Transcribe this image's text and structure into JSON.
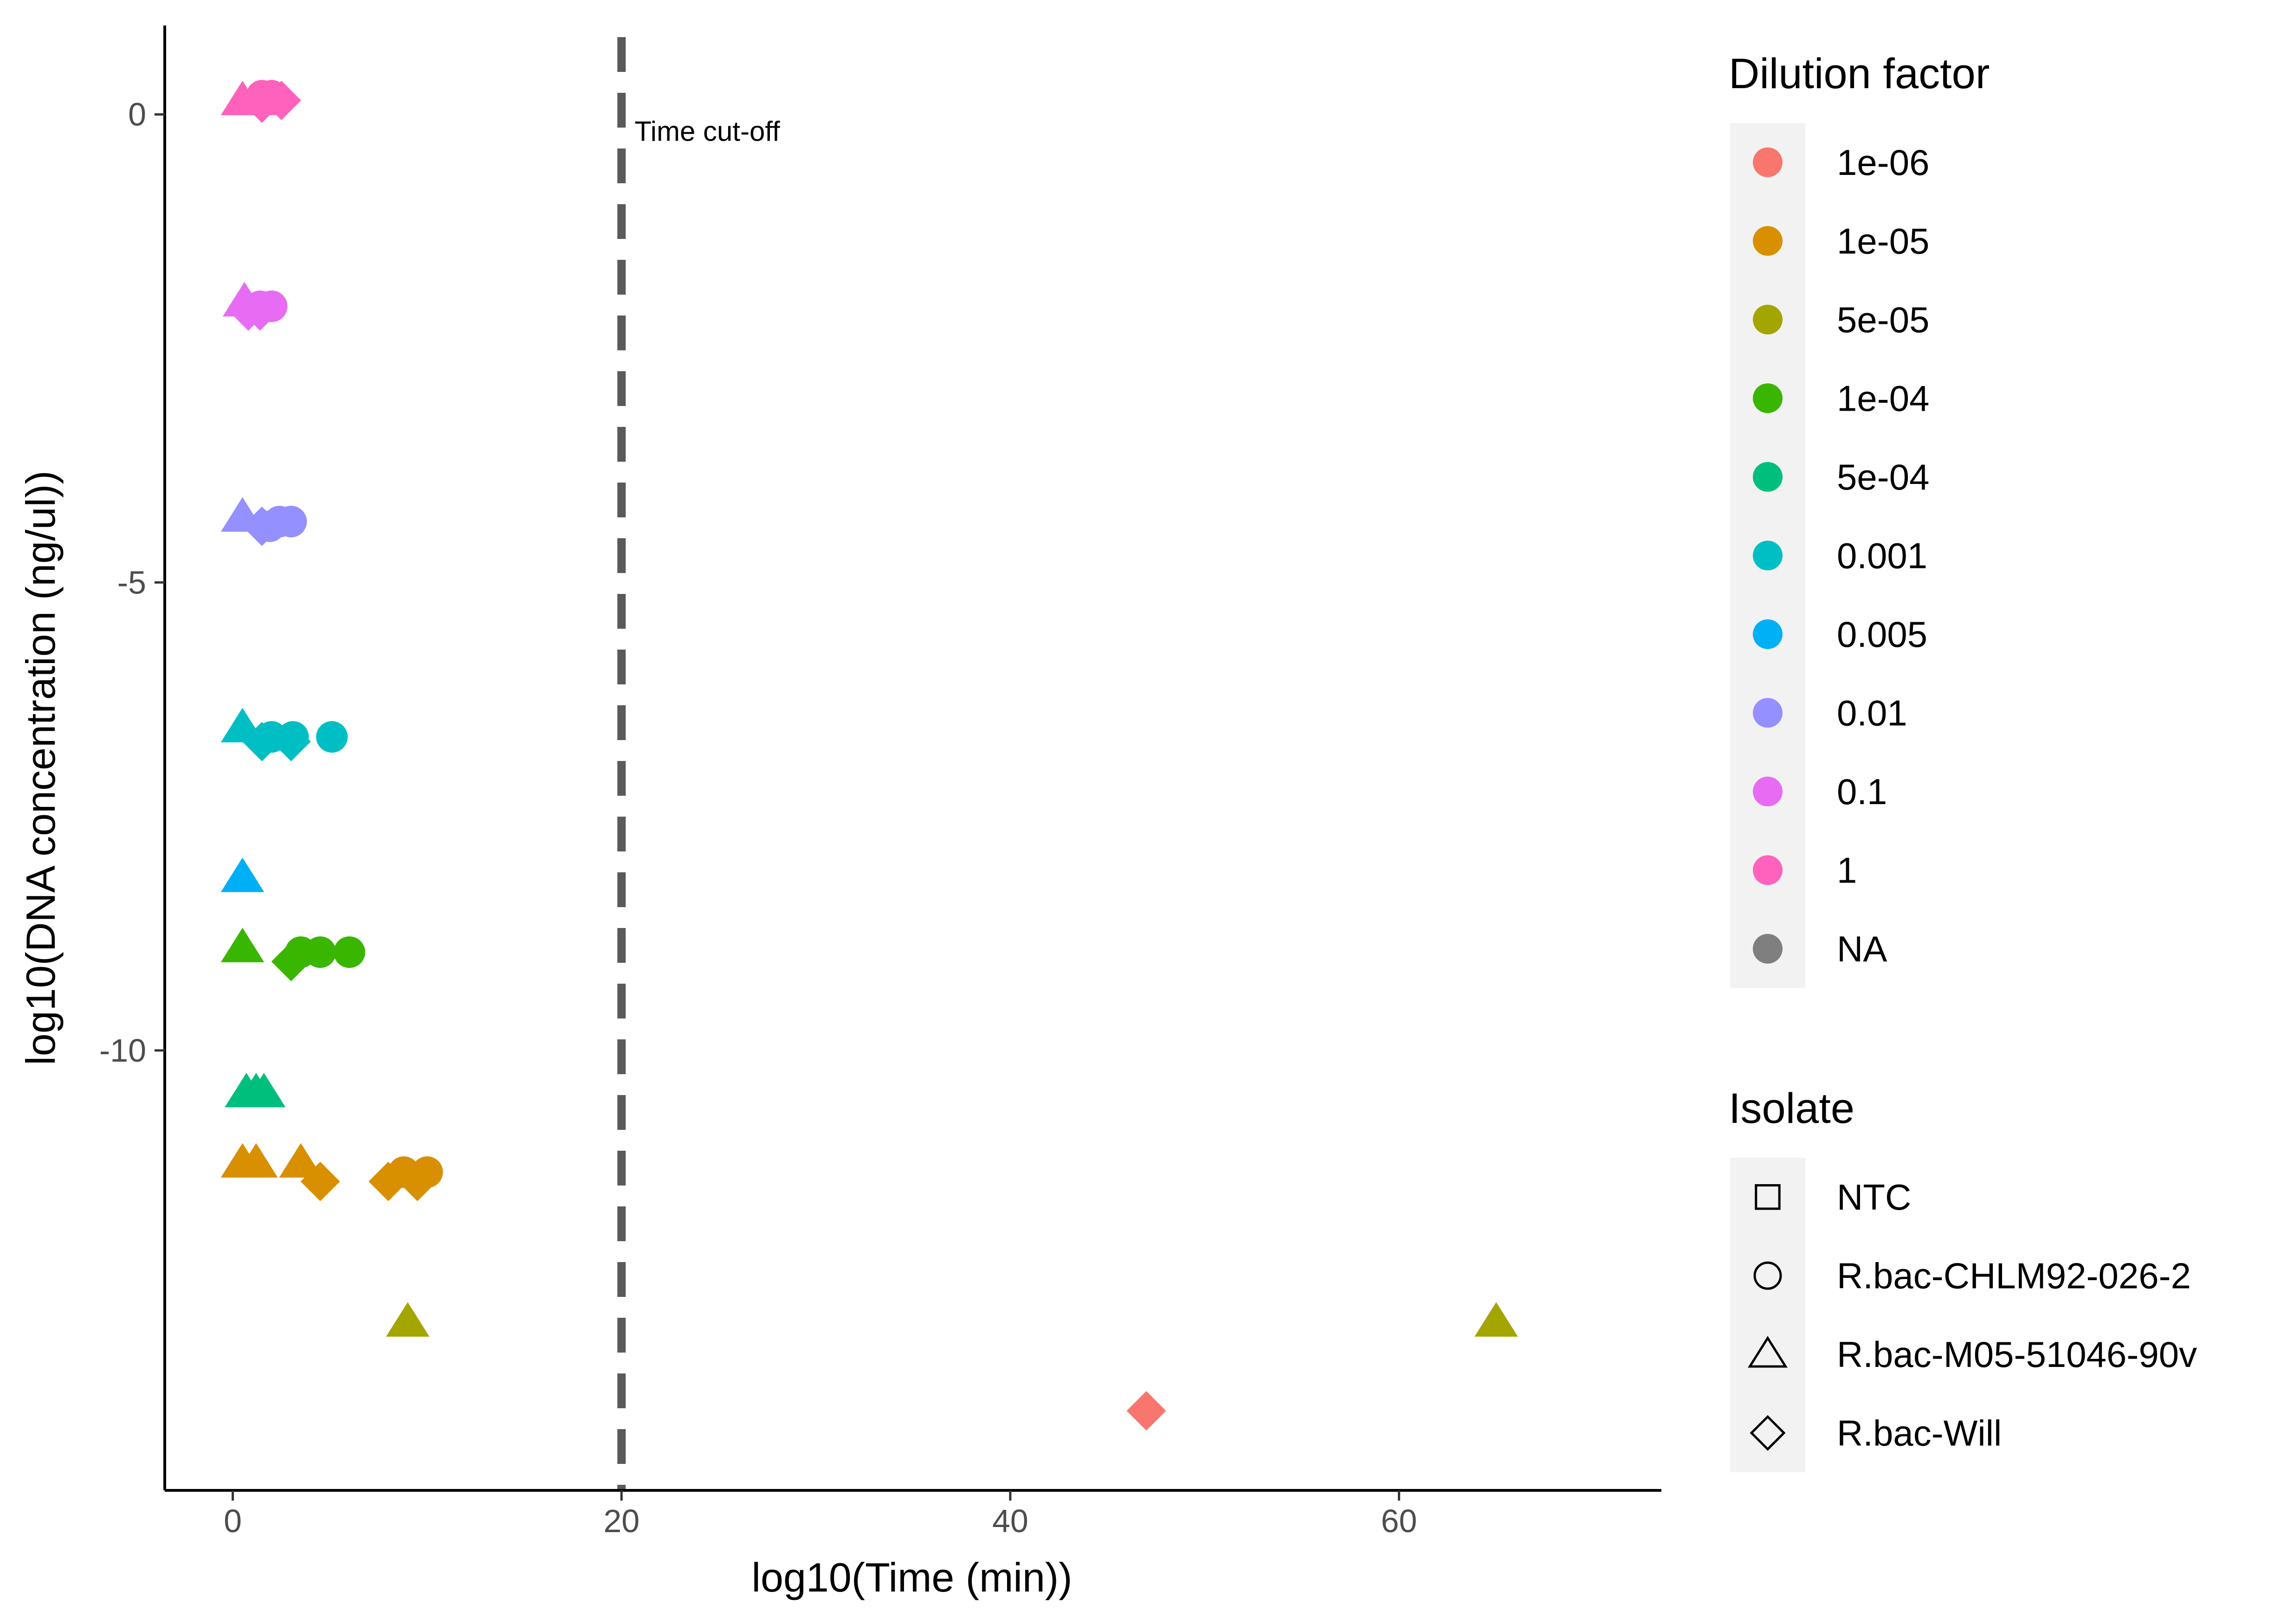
{
  "chart_data": {
    "type": "scatter",
    "title": "",
    "xlabel": "log10(Time (min))",
    "ylabel": "log10(DNA concentration (ng/ul))",
    "xlim": [
      -3.5,
      73.5
    ],
    "ylim": [
      -14.7,
      0.95
    ],
    "x_ticks": [
      0,
      20,
      40,
      60
    ],
    "y_ticks": [
      0,
      -5,
      -10
    ],
    "grid": false,
    "cutoff": {
      "x": 20,
      "label": "Time cut-off"
    },
    "legend_position": "right",
    "legends": {
      "dilution": {
        "title": "Dilution factor",
        "entries": [
          {
            "label": "1e-06",
            "color": "#F8766D"
          },
          {
            "label": "1e-05",
            "color": "#D89000"
          },
          {
            "label": "5e-05",
            "color": "#A3A500"
          },
          {
            "label": "1e-04",
            "color": "#39B600"
          },
          {
            "label": "5e-04",
            "color": "#00BF7D"
          },
          {
            "label": "0.001",
            "color": "#00BFC4"
          },
          {
            "label": "0.005",
            "color": "#00B0F6"
          },
          {
            "label": "0.01",
            "color": "#9590FF"
          },
          {
            "label": "0.1",
            "color": "#E76BF3"
          },
          {
            "label": "1",
            "color": "#FF62BC"
          },
          {
            "label": "NA",
            "color": "#7F7F7F"
          }
        ]
      },
      "isolate": {
        "title": "Isolate",
        "entries": [
          {
            "label": "NTC",
            "shape": "square"
          },
          {
            "label": "R.bac-CHLM92-026-2",
            "shape": "circle"
          },
          {
            "label": "R.bac-M05-51046-90v",
            "shape": "triangle"
          },
          {
            "label": "R.bac-Will",
            "shape": "diamond"
          }
        ]
      }
    },
    "points": [
      {
        "x": 0.5,
        "y": 0.15,
        "dilution": "1",
        "shape": "triangle"
      },
      {
        "x": 1.2,
        "y": 0.15,
        "dilution": "1",
        "shape": "triangle"
      },
      {
        "x": 1.5,
        "y": 0.2,
        "dilution": "1",
        "shape": "circle"
      },
      {
        "x": 2.0,
        "y": 0.2,
        "dilution": "1",
        "shape": "circle"
      },
      {
        "x": 1.5,
        "y": 0.12,
        "dilution": "1",
        "shape": "diamond"
      },
      {
        "x": 2.5,
        "y": 0.15,
        "dilution": "1",
        "shape": "diamond"
      },
      {
        "x": 0.6,
        "y": -2.0,
        "dilution": "0.1",
        "shape": "triangle"
      },
      {
        "x": 0.8,
        "y": -2.1,
        "dilution": "0.1",
        "shape": "diamond"
      },
      {
        "x": 1.4,
        "y": -2.1,
        "dilution": "0.1",
        "shape": "diamond"
      },
      {
        "x": 1.4,
        "y": -2.05,
        "dilution": "0.1",
        "shape": "circle"
      },
      {
        "x": 2.0,
        "y": -2.05,
        "dilution": "0.1",
        "shape": "circle"
      },
      {
        "x": 0.5,
        "y": -4.3,
        "dilution": "0.01",
        "shape": "triangle"
      },
      {
        "x": 1.5,
        "y": -4.4,
        "dilution": "0.01",
        "shape": "diamond"
      },
      {
        "x": 1.9,
        "y": -4.4,
        "dilution": "0.01",
        "shape": "circle"
      },
      {
        "x": 2.4,
        "y": -4.35,
        "dilution": "0.01",
        "shape": "circle"
      },
      {
        "x": 3.0,
        "y": -4.35,
        "dilution": "0.01",
        "shape": "circle"
      },
      {
        "x": 0.5,
        "y": -6.55,
        "dilution": "0.001",
        "shape": "triangle"
      },
      {
        "x": 1.5,
        "y": -6.7,
        "dilution": "0.001",
        "shape": "diamond"
      },
      {
        "x": 2.0,
        "y": -6.65,
        "dilution": "0.001",
        "shape": "circle"
      },
      {
        "x": 3.0,
        "y": -6.7,
        "dilution": "0.001",
        "shape": "diamond"
      },
      {
        "x": 3.1,
        "y": -6.65,
        "dilution": "0.001",
        "shape": "circle"
      },
      {
        "x": 5.1,
        "y": -6.65,
        "dilution": "0.001",
        "shape": "circle"
      },
      {
        "x": 0.5,
        "y": -8.15,
        "dilution": "0.005",
        "shape": "triangle"
      },
      {
        "x": 0.5,
        "y": -8.9,
        "dilution": "1e-04",
        "shape": "triangle"
      },
      {
        "x": 3.0,
        "y": -9.05,
        "dilution": "1e-04",
        "shape": "diamond"
      },
      {
        "x": 3.5,
        "y": -8.95,
        "dilution": "1e-04",
        "shape": "circle"
      },
      {
        "x": 4.5,
        "y": -8.95,
        "dilution": "1e-04",
        "shape": "circle"
      },
      {
        "x": 6.0,
        "y": -8.95,
        "dilution": "1e-04",
        "shape": "circle"
      },
      {
        "x": 0.7,
        "y": -10.45,
        "dilution": "5e-04",
        "shape": "triangle"
      },
      {
        "x": 1.2,
        "y": -10.45,
        "dilution": "5e-04",
        "shape": "triangle"
      },
      {
        "x": 1.6,
        "y": -10.45,
        "dilution": "5e-04",
        "shape": "triangle"
      },
      {
        "x": 0.5,
        "y": -11.2,
        "dilution": "1e-05",
        "shape": "triangle"
      },
      {
        "x": 1.2,
        "y": -11.2,
        "dilution": "1e-05",
        "shape": "triangle"
      },
      {
        "x": 3.5,
        "y": -11.2,
        "dilution": "1e-05",
        "shape": "triangle"
      },
      {
        "x": 4.5,
        "y": -11.4,
        "dilution": "1e-05",
        "shape": "diamond"
      },
      {
        "x": 8.0,
        "y": -11.4,
        "dilution": "1e-05",
        "shape": "diamond"
      },
      {
        "x": 8.8,
        "y": -11.3,
        "dilution": "1e-05",
        "shape": "circle"
      },
      {
        "x": 9.5,
        "y": -11.4,
        "dilution": "1e-05",
        "shape": "diamond"
      },
      {
        "x": 10.0,
        "y": -11.3,
        "dilution": "1e-05",
        "shape": "circle"
      },
      {
        "x": 9.0,
        "y": -12.9,
        "dilution": "5e-05",
        "shape": "triangle"
      },
      {
        "x": 65.0,
        "y": -12.9,
        "dilution": "5e-05",
        "shape": "triangle"
      },
      {
        "x": 47.0,
        "y": -13.85,
        "dilution": "1e-06",
        "shape": "diamond"
      }
    ]
  }
}
